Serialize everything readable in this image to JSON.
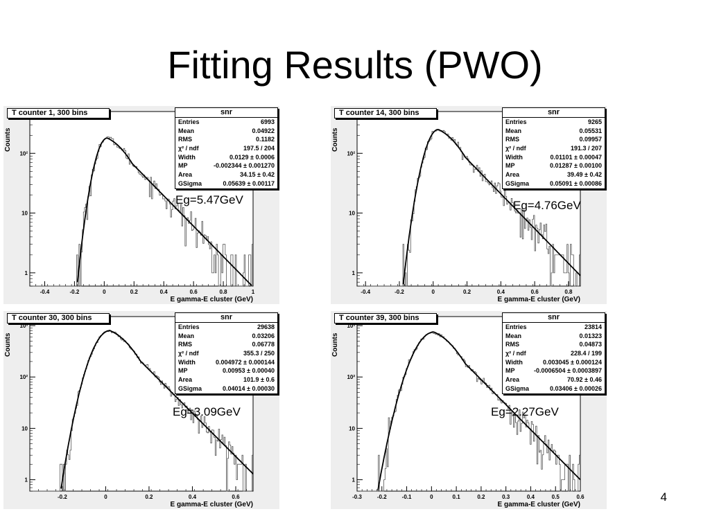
{
  "slide": {
    "title": "Fitting Results (PWO)",
    "number": "4"
  },
  "chart_data": [
    {
      "type": "histogram",
      "title": "T counter 1, 300 bins",
      "xlabel": "E gamma-E cluster (GeV)",
      "ylabel": "Counts",
      "xlim": [
        -0.5,
        1.0
      ],
      "ylog": true,
      "ylim": [
        0.6,
        500
      ],
      "x_ticks": [
        "-0.4",
        "-0.2",
        "0",
        "0.2",
        "0.4",
        "0.6",
        "0.8",
        "1"
      ],
      "x_tick_values": [
        -0.4,
        -0.2,
        0,
        0.2,
        0.4,
        0.6,
        0.8,
        1.0
      ],
      "y_ticks": [
        "1",
        "10",
        "10²"
      ],
      "y_tick_values": [
        1,
        10,
        100
      ],
      "peak": {
        "x": 0.02,
        "y": 180
      },
      "fit": {
        "right_width": 0.12,
        "end_y": 0.58
      },
      "annotation": "Eg=5.47GeV",
      "stats": {
        "title": "snr",
        "rows": [
          {
            "label": "Entries",
            "value": "6993"
          },
          {
            "label": "Mean",
            "value": "0.04922"
          },
          {
            "label": "RMS",
            "value": "0.1182"
          },
          {
            "label": "χ² / ndf",
            "value": "197.5 / 204"
          },
          {
            "label": "Width",
            "value": "0.0129 ± 0.0006"
          },
          {
            "label": "MP",
            "value": "-0.002344 ± 0.001270"
          },
          {
            "label": "Area",
            "value": "34.15 ± 0.42"
          },
          {
            "label": "GSigma",
            "value": "0.05639 ± 0.00117"
          }
        ]
      }
    },
    {
      "type": "histogram",
      "title": "T counter 14, 300 bins",
      "xlabel": "E gamma-E cluster (GeV)",
      "ylabel": "Counts",
      "xlim": [
        -0.45,
        0.87
      ],
      "ylog": true,
      "ylim": [
        0.6,
        500
      ],
      "x_ticks": [
        "-0.4",
        "-0.2",
        "0",
        "0.2",
        "0.4",
        "0.6",
        "0.8"
      ],
      "x_tick_values": [
        -0.4,
        -0.2,
        0,
        0.2,
        0.4,
        0.6,
        0.8
      ],
      "y_ticks": [
        "1",
        "10",
        "10²"
      ],
      "y_tick_values": [
        1,
        10,
        100
      ],
      "peak": {
        "x": 0.03,
        "y": 250
      },
      "fit": {
        "right_width": 0.11,
        "end_y": 0.9
      },
      "annotation": "Eg=4.76GeV",
      "stats": {
        "title": "snr",
        "rows": [
          {
            "label": "Entries",
            "value": "9265"
          },
          {
            "label": "Mean",
            "value": "0.05531"
          },
          {
            "label": "RMS",
            "value": "0.09957"
          },
          {
            "label": "χ² / ndf",
            "value": "191.3 / 207"
          },
          {
            "label": "Width",
            "value": "0.01101 ± 0.00047"
          },
          {
            "label": "MP",
            "value": "0.01287 ± 0.00100"
          },
          {
            "label": "Area",
            "value": "39.49 ± 0.42"
          },
          {
            "label": "GSigma",
            "value": "0.05091 ± 0.00086"
          }
        ]
      }
    },
    {
      "type": "histogram",
      "title": "T counter 30, 300 bins",
      "xlabel": "E gamma-E cluster (GeV)",
      "ylabel": "Counts",
      "xlim": [
        -0.35,
        0.68
      ],
      "ylog": true,
      "ylim": [
        0.6,
        1500
      ],
      "x_ticks": [
        "-0.2",
        "0",
        "0.2",
        "0.4",
        "0.6"
      ],
      "x_tick_values": [
        -0.2,
        0,
        0.2,
        0.4,
        0.6
      ],
      "y_ticks": [
        "1",
        "10",
        "10²",
        "10³"
      ],
      "y_tick_values": [
        1,
        10,
        100,
        1000
      ],
      "peak": {
        "x": 0.02,
        "y": 800
      },
      "fit": {
        "right_width": 0.085,
        "end_y": 1.3
      },
      "annotation": "Eg=3.09GeV",
      "stats": {
        "title": "snr",
        "rows": [
          {
            "label": "Entries",
            "value": "29638"
          },
          {
            "label": "Mean",
            "value": "0.03206"
          },
          {
            "label": "RMS",
            "value": "0.06778"
          },
          {
            "label": "χ² / ndf",
            "value": "355.3 / 250"
          },
          {
            "label": "Width",
            "value": "0.004972 ± 0.000144"
          },
          {
            "label": "MP",
            "value": "0.00953 ± 0.00040"
          },
          {
            "label": "Area",
            "value": "101.9 ± 0.6"
          },
          {
            "label": "GSigma",
            "value": "0.04014 ± 0.00030"
          }
        ]
      }
    },
    {
      "type": "histogram",
      "title": "T counter 39, 300 bins",
      "xlabel": "E gamma-E cluster (GeV)",
      "ylabel": "Counts",
      "xlim": [
        -0.3,
        0.6
      ],
      "ylog": true,
      "ylim": [
        0.6,
        1500
      ],
      "x_ticks": [
        "-0.3",
        "-0.2",
        "-0.1",
        "0",
        "0.1",
        "0.2",
        "0.3",
        "0.4",
        "0.5",
        "0.6"
      ],
      "x_tick_values": [
        -0.3,
        -0.2,
        -0.1,
        0,
        0.1,
        0.2,
        0.3,
        0.4,
        0.5,
        0.6
      ],
      "y_ticks": [
        "1",
        "10",
        "10²",
        "10³"
      ],
      "y_tick_values": [
        1,
        10,
        100,
        1000
      ],
      "peak": {
        "x": 0.01,
        "y": 750
      },
      "fit": {
        "right_width": 0.075,
        "end_y": 1.0
      },
      "annotation": "Eg=2.27GeV",
      "stats": {
        "title": "snr",
        "rows": [
          {
            "label": "Entries",
            "value": "23814"
          },
          {
            "label": "Mean",
            "value": "0.01323"
          },
          {
            "label": "RMS",
            "value": "0.04873"
          },
          {
            "label": "χ² / ndf",
            "value": "228.4 / 199"
          },
          {
            "label": "Width",
            "value": "0.003045 ± 0.000124"
          },
          {
            "label": "MP",
            "value": "-0.0006504 ± 0.0003897"
          },
          {
            "label": "Area",
            "value": "70.92 ± 0.46"
          },
          {
            "label": "GSigma",
            "value": "0.03406 ± 0.00026"
          }
        ]
      }
    }
  ]
}
